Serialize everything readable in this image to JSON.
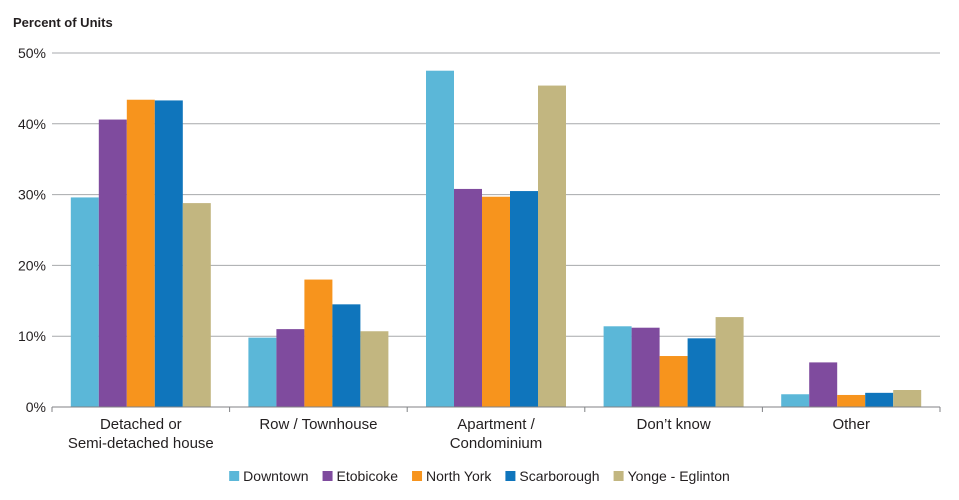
{
  "chart_data": {
    "type": "bar",
    "title": "",
    "xlabel": "",
    "ylabel": "Percent of Units",
    "ylim": [
      0,
      50
    ],
    "yticks": [
      "0%",
      "10%",
      "20%",
      "30%",
      "40%",
      "50%"
    ],
    "grid": true,
    "legend_position": "bottom",
    "categories": [
      [
        "Detached or",
        "Semi-detached house"
      ],
      [
        "Row / Townhouse"
      ],
      [
        "Apartment /",
        "Condominium"
      ],
      [
        "Don’t know"
      ],
      [
        "Other"
      ]
    ],
    "series": [
      {
        "name": "Downtown",
        "color": "#5bb7d8",
        "values": [
          29.6,
          9.8,
          47.5,
          11.4,
          1.8
        ]
      },
      {
        "name": "Etobicoke",
        "color": "#7f4b9e",
        "values": [
          40.6,
          11.0,
          30.8,
          11.2,
          6.3
        ]
      },
      {
        "name": "North York",
        "color": "#f7941d",
        "values": [
          43.4,
          18.0,
          29.7,
          7.2,
          1.7
        ]
      },
      {
        "name": "Scarborough",
        "color": "#0f75bc",
        "values": [
          43.3,
          14.5,
          30.5,
          9.7,
          2.0
        ]
      },
      {
        "name": "Yonge - Eglinton",
        "color": "#c2b680",
        "values": [
          28.8,
          10.7,
          45.4,
          12.7,
          2.4
        ]
      }
    ]
  }
}
